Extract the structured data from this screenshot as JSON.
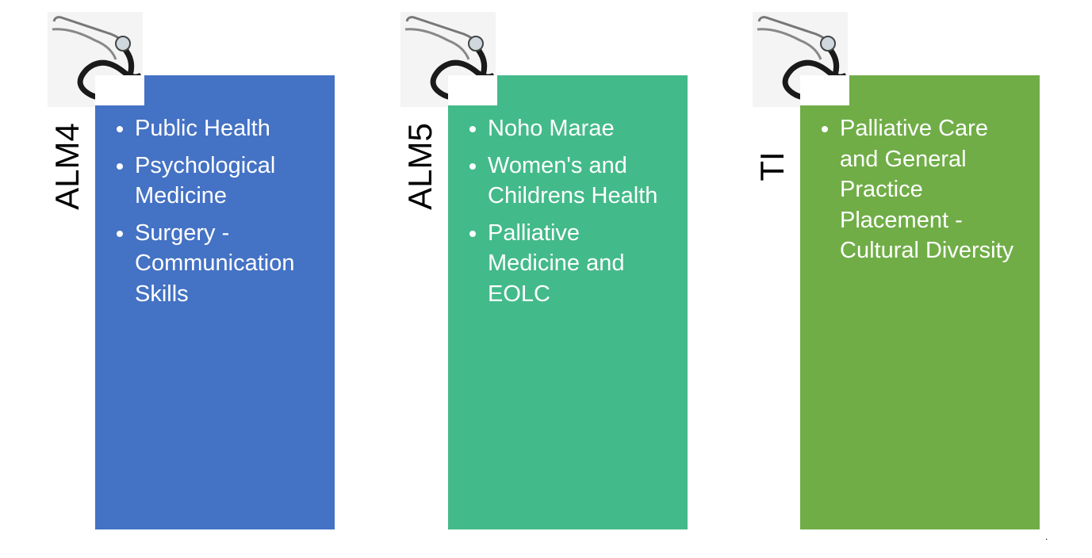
{
  "columns": [
    {
      "label": "ALM4",
      "color": "#4472c4",
      "items": [
        "Public Health",
        "Psychological Medicine",
        "Surgery - Communication Skills"
      ]
    },
    {
      "label": "ALM5",
      "color": "#43ba8a",
      "items": [
        "Noho Marae",
        "Women's and Childrens Health",
        "Palliative Medicine and EOLC"
      ]
    },
    {
      "label": "TI",
      "color": "#70ad47",
      "items": [
        "Palliative Care and General Practice Placement - Cultural Diversity"
      ]
    }
  ],
  "image_icon": "stethoscope-icon",
  "footnote": "."
}
